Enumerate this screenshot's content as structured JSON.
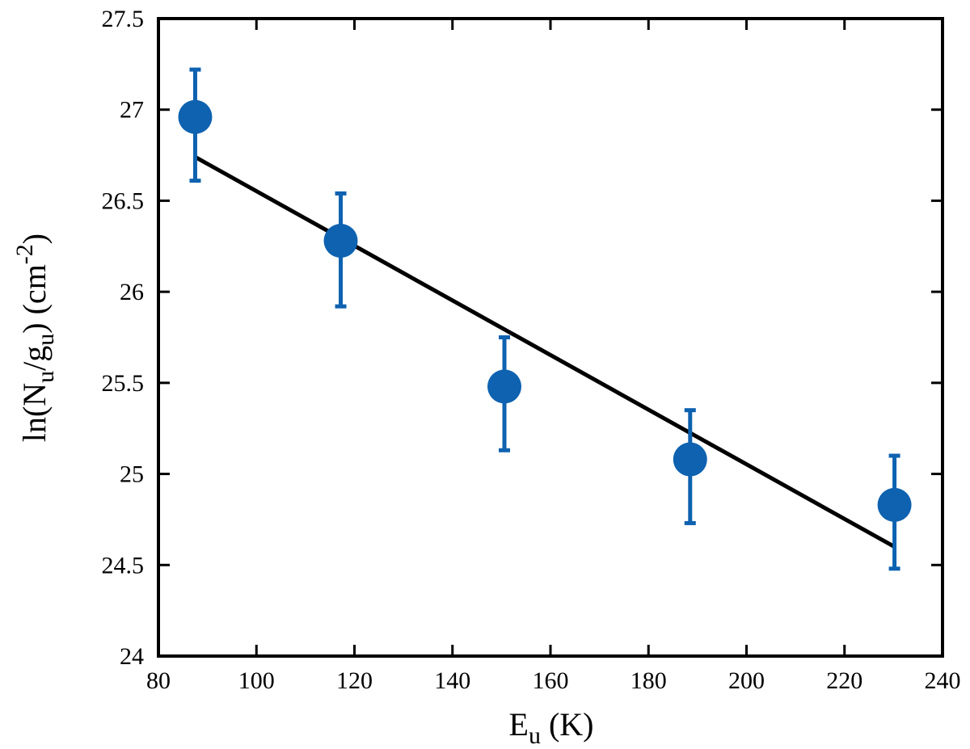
{
  "chart_data": {
    "type": "scatter",
    "title": "",
    "xlabel": {
      "base": "E",
      "sub": "u",
      "rest": " (K)"
    },
    "ylabel": {
      "p1": "ln(N",
      "sub1": "u",
      "p2": "/g",
      "sub2": "u",
      "p3": ") (cm",
      "sup": "-2",
      "p4": ")"
    },
    "xlim": [
      80,
      240
    ],
    "ylim": [
      24,
      27.5
    ],
    "xticks": [
      80,
      100,
      120,
      140,
      160,
      180,
      200,
      220,
      240
    ],
    "yticks": [
      24,
      24.5,
      25,
      25.5,
      26,
      26.5,
      27,
      27.5
    ],
    "grid": false,
    "points": [
      {
        "x": 87.5,
        "y": 26.96,
        "err_low": 26.61,
        "err_high": 27.22
      },
      {
        "x": 117.2,
        "y": 26.28,
        "err_low": 25.92,
        "err_high": 26.54
      },
      {
        "x": 150.6,
        "y": 25.48,
        "err_low": 25.13,
        "err_high": 25.75
      },
      {
        "x": 188.5,
        "y": 25.08,
        "err_low": 24.73,
        "err_high": 25.35
      },
      {
        "x": 230.2,
        "y": 24.83,
        "err_low": 24.48,
        "err_high": 25.1
      }
    ],
    "fit_line": {
      "x": [
        87.5,
        230.2
      ],
      "y": [
        26.74,
        24.6
      ]
    },
    "colors": {
      "points": "#0e62b0",
      "fit": "#000000",
      "axes": "#000000"
    }
  }
}
